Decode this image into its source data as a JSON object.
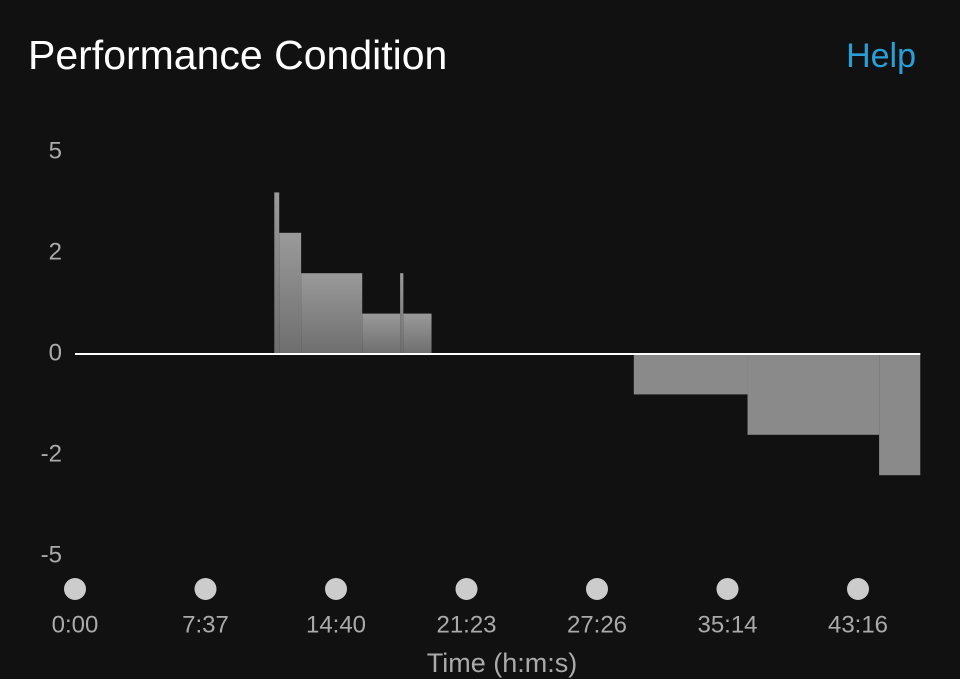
{
  "header": {
    "title": "Performance Condition",
    "help": "Help"
  },
  "chart_data": {
    "type": "step-area",
    "x_label": "Time (h:m:s)",
    "x": [
      0,
      680,
      696,
      767,
      961,
      1078,
      1088,
      1175,
      1778,
      2188,
      2674
    ],
    "values": [
      0,
      3.8,
      2.6,
      1.6,
      0.8,
      1.6,
      0.8,
      0,
      -0.8,
      -1.6,
      -2.6
    ],
    "color": "#8a8a8a",
    "xlim": [
      0,
      2826
    ],
    "xticks": [
      {
        "value": 0,
        "label": "0:00"
      },
      {
        "value": 457,
        "label": "7:37"
      },
      {
        "value": 880,
        "label": "14:40"
      },
      {
        "value": 1283,
        "label": "21:23"
      },
      {
        "value": 1646,
        "label": "27:26"
      },
      {
        "value": 2114,
        "label": "35:14"
      },
      {
        "value": 2596,
        "label": "43:16"
      }
    ],
    "ylim": [
      -5,
      5
    ],
    "yticks": [
      5,
      2,
      0,
      -2,
      -5
    ]
  }
}
